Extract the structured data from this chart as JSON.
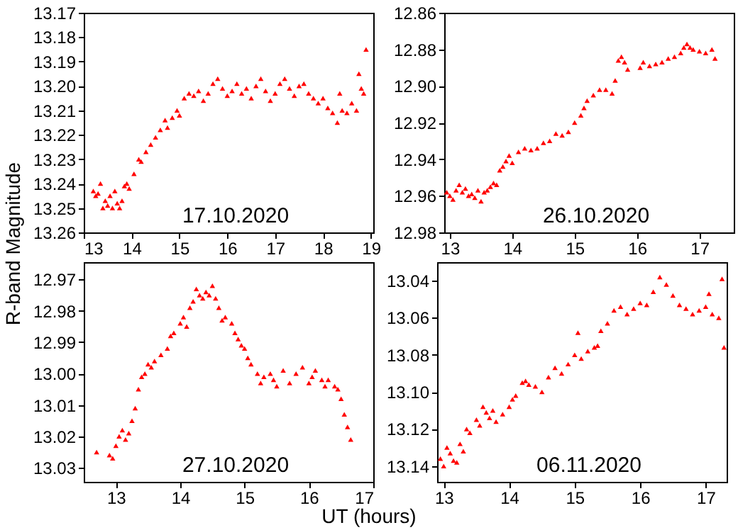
{
  "chart_data": [
    {
      "type": "scatter",
      "marker": "triangle",
      "grid": false,
      "annotations": [
        "17.10.2020"
      ],
      "xlim": [
        13,
        19.05
      ],
      "xticks": [
        13,
        14,
        15,
        16,
        17,
        18,
        19
      ],
      "ylim": [
        13.26,
        13.17
      ],
      "yticks": [
        13.17,
        13.18,
        13.19,
        {
          "value": 13.2,
          "label": "13.20"
        },
        13.21,
        13.22,
        13.23,
        13.24,
        13.25,
        {
          "value": 13.26,
          "label": "13.26"
        }
      ],
      "series": [
        {
          "color": "#ff0000",
          "x": [
            13.2,
            13.25,
            13.3,
            13.35,
            13.4,
            13.45,
            13.5,
            13.55,
            13.6,
            13.65,
            13.7,
            13.75,
            13.8,
            13.85,
            13.9,
            13.95,
            14.05,
            14.15,
            14.2,
            14.3,
            14.4,
            14.5,
            14.6,
            14.7,
            14.75,
            14.85,
            14.95,
            15.0,
            15.1,
            15.2,
            15.3,
            15.4,
            15.5,
            15.6,
            15.7,
            15.8,
            15.9,
            16.0,
            16.1,
            16.2,
            16.3,
            16.4,
            16.5,
            16.6,
            16.7,
            16.8,
            16.9,
            17.0,
            17.1,
            17.2,
            17.3,
            17.4,
            17.5,
            17.6,
            17.7,
            17.8,
            17.9,
            18.0,
            18.1,
            18.2,
            18.3,
            18.35,
            18.4,
            18.5,
            18.6,
            18.7,
            18.75,
            18.8,
            18.85,
            18.9
          ],
          "values": [
            13.243,
            13.245,
            13.244,
            13.24,
            13.25,
            13.247,
            13.249,
            13.245,
            13.25,
            13.243,
            13.248,
            13.25,
            13.247,
            13.241,
            13.24,
            13.242,
            13.236,
            13.23,
            13.231,
            13.227,
            13.224,
            13.221,
            13.218,
            13.214,
            13.217,
            13.213,
            13.21,
            13.212,
            13.205,
            13.203,
            13.204,
            13.202,
            13.206,
            13.203,
            13.199,
            13.197,
            13.201,
            13.204,
            13.202,
            13.199,
            13.203,
            13.201,
            13.205,
            13.2,
            13.197,
            13.202,
            13.206,
            13.203,
            13.199,
            13.197,
            13.201,
            13.204,
            13.2,
            13.199,
            13.203,
            13.205,
            13.207,
            13.205,
            13.209,
            13.211,
            13.215,
            13.203,
            13.21,
            13.211,
            13.207,
            13.21,
            13.195,
            13.201,
            13.203,
            13.185
          ]
        }
      ]
    },
    {
      "type": "scatter",
      "marker": "triangle",
      "grid": false,
      "annotations": [
        "26.10.2020"
      ],
      "xlim": [
        12.91,
        17.55
      ],
      "xticks": [
        13,
        14,
        15,
        16,
        17
      ],
      "ylim": [
        12.98,
        12.86
      ],
      "yticks": [
        12.86,
        12.88,
        {
          "value": 12.9,
          "label": "12.90"
        },
        12.92,
        12.94,
        12.96,
        12.98
      ],
      "series": [
        {
          "color": "#ff0000",
          "x": [
            12.95,
            13.0,
            13.05,
            13.1,
            13.15,
            13.2,
            13.25,
            13.3,
            13.35,
            13.4,
            13.45,
            13.5,
            13.55,
            13.6,
            13.65,
            13.7,
            13.75,
            13.8,
            13.85,
            13.9,
            13.95,
            14.0,
            14.1,
            14.2,
            14.3,
            14.4,
            14.5,
            14.6,
            14.7,
            14.8,
            14.9,
            15.0,
            15.1,
            15.15,
            15.2,
            15.3,
            15.4,
            15.5,
            15.6,
            15.65,
            15.7,
            15.75,
            15.8,
            15.85,
            16.05,
            16.1,
            16.2,
            16.3,
            16.4,
            16.5,
            16.6,
            16.7,
            16.75,
            16.8,
            16.85,
            16.9,
            17.0,
            17.1,
            17.2,
            17.25
          ],
          "values": [
            12.958,
            12.96,
            12.962,
            12.957,
            12.954,
            12.958,
            12.956,
            12.96,
            12.959,
            12.961,
            12.957,
            12.963,
            12.958,
            12.957,
            12.955,
            12.953,
            12.954,
            12.946,
            12.944,
            12.941,
            12.938,
            12.942,
            12.936,
            12.934,
            12.935,
            12.934,
            12.931,
            12.93,
            12.926,
            12.927,
            12.925,
            12.92,
            12.916,
            12.912,
            12.908,
            12.905,
            12.902,
            12.902,
            12.904,
            12.897,
            12.886,
            12.884,
            12.887,
            12.891,
            12.89,
            12.887,
            12.889,
            12.888,
            12.887,
            12.885,
            12.884,
            12.882,
            12.879,
            12.877,
            12.879,
            12.88,
            12.881,
            12.882,
            12.88,
            12.885
          ]
        }
      ]
    },
    {
      "type": "scatter",
      "marker": "triangle",
      "grid": false,
      "ylabel": "R-band Magnitude",
      "annotations": [
        "27.10.2020"
      ],
      "xlim": [
        12.5,
        17
      ],
      "xticks": [
        13,
        14,
        15,
        16,
        17
      ],
      "ylim": [
        13.0345,
        12.9645
      ],
      "yticks": [
        12.97,
        12.98,
        12.99,
        {
          "value": 13.0,
          "label": "13.00"
        },
        13.01,
        13.02,
        13.03
      ],
      "series": [
        {
          "color": "#ff0000",
          "x": [
            12.7,
            12.9,
            12.95,
            13.0,
            13.05,
            13.1,
            13.15,
            13.2,
            13.25,
            13.3,
            13.35,
            13.4,
            13.45,
            13.5,
            13.55,
            13.6,
            13.7,
            13.8,
            13.85,
            13.9,
            14.0,
            14.05,
            14.1,
            14.15,
            14.2,
            14.25,
            14.3,
            14.35,
            14.4,
            14.45,
            14.5,
            14.55,
            14.6,
            14.65,
            14.7,
            14.8,
            14.85,
            14.9,
            14.95,
            15.0,
            15.05,
            15.1,
            15.2,
            15.25,
            15.3,
            15.4,
            15.45,
            15.5,
            15.6,
            15.7,
            15.8,
            15.9,
            16.0,
            16.05,
            16.1,
            16.2,
            16.25,
            16.3,
            16.4,
            16.45,
            16.5,
            16.55,
            16.6,
            16.65
          ],
          "values": [
            13.025,
            13.026,
            13.027,
            13.023,
            13.02,
            13.018,
            13.021,
            13.019,
            13.015,
            13.011,
            13.005,
            13.001,
            13.0,
            12.997,
            12.998,
            12.996,
            12.994,
            12.992,
            12.988,
            12.987,
            12.984,
            12.982,
            12.985,
            12.979,
            12.977,
            12.973,
            12.975,
            12.976,
            12.974,
            12.975,
            12.972,
            12.976,
            12.979,
            12.983,
            12.982,
            12.984,
            12.987,
            12.989,
            12.991,
            12.992,
            12.995,
            12.997,
            13.0,
            13.003,
            13.001,
            13.0,
            13.002,
            13.004,
            12.999,
            13.003,
            13.0,
            12.998,
            13.003,
            13.001,
            12.999,
            13.002,
            13.004,
            13.002,
            13.004,
            13.005,
            13.008,
            13.013,
            13.017,
            13.021
          ]
        }
      ]
    },
    {
      "type": "scatter",
      "marker": "triangle",
      "grid": false,
      "xlabel": "UT (hours)",
      "annotations": [
        "06.11.2020"
      ],
      "xlim": [
        12.9,
        17.32
      ],
      "xticks": [
        13,
        14,
        15,
        16,
        17
      ],
      "ylim": [
        13.1485,
        13.03
      ],
      "yticks": [
        13.04,
        13.06,
        13.08,
        {
          "value": 13.1,
          "label": "13.10"
        },
        13.12,
        13.14
      ],
      "series": [
        {
          "color": "#ff0000",
          "x": [
            12.95,
            13.0,
            13.05,
            13.1,
            13.15,
            13.2,
            13.25,
            13.3,
            13.35,
            13.4,
            13.5,
            13.55,
            13.6,
            13.65,
            13.7,
            13.75,
            13.8,
            13.9,
            14.0,
            14.05,
            14.1,
            14.2,
            14.25,
            14.3,
            14.4,
            14.5,
            14.6,
            14.7,
            14.8,
            14.9,
            15.0,
            15.05,
            15.1,
            15.2,
            15.3,
            15.35,
            15.4,
            15.5,
            15.6,
            15.7,
            15.8,
            15.9,
            16.0,
            16.1,
            16.2,
            16.3,
            16.4,
            16.5,
            16.6,
            16.7,
            16.8,
            16.9,
            17.0,
            17.05,
            17.1,
            17.2,
            17.25,
            17.28
          ],
          "values": [
            13.136,
            13.14,
            13.13,
            13.133,
            13.137,
            13.138,
            13.128,
            13.132,
            13.12,
            13.122,
            13.115,
            13.118,
            13.108,
            13.111,
            13.114,
            13.11,
            13.116,
            13.112,
            13.108,
            13.104,
            13.102,
            13.095,
            13.094,
            13.096,
            13.097,
            13.1,
            13.092,
            13.087,
            13.09,
            13.085,
            13.08,
            13.068,
            13.082,
            13.078,
            13.076,
            13.075,
            13.067,
            13.063,
            13.056,
            13.054,
            13.058,
            13.055,
            13.052,
            13.053,
            13.046,
            13.038,
            13.042,
            13.048,
            13.053,
            13.055,
            13.058,
            13.056,
            13.054,
            13.047,
            13.058,
            13.06,
            13.039,
            13.076
          ]
        }
      ]
    }
  ]
}
